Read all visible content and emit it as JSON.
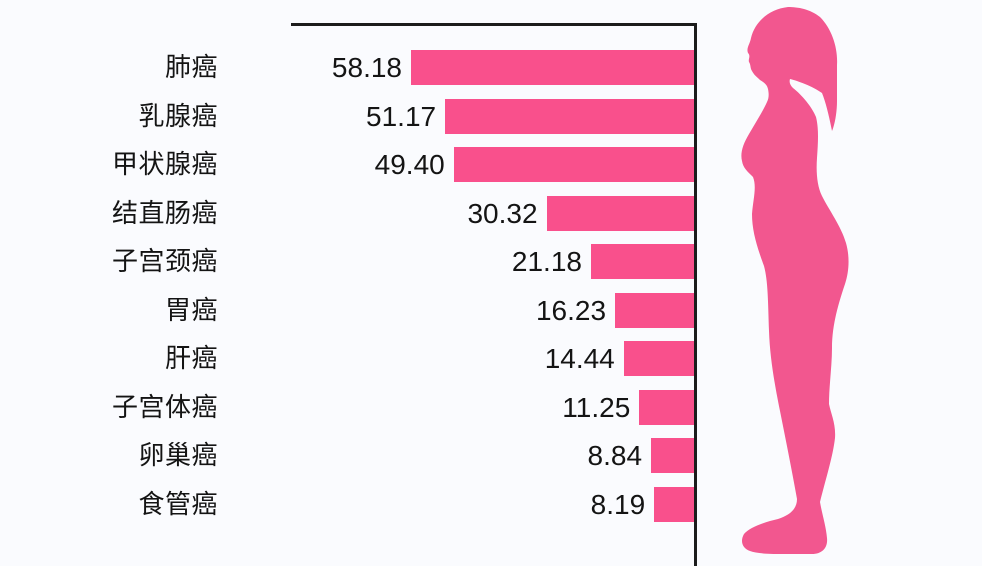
{
  "background_color": "#fafbfe",
  "axis_color": "#1c1c1c",
  "text_color": "#141414",
  "chart_data": {
    "type": "bar",
    "orientation": "horizontal",
    "bars_anchored": "right",
    "title": "",
    "xlabel": "",
    "ylabel": "",
    "grid": false,
    "legend": null,
    "xlim": [
      0,
      58.18
    ],
    "bar_color": "#f9508c",
    "categories": [
      "肺癌",
      "乳腺癌",
      "甲状腺癌",
      "结直肠癌",
      "子宫颈癌",
      "胃癌",
      "肝癌",
      "子宫体癌",
      "卵巢癌",
      "食管癌"
    ],
    "values": [
      58.18,
      51.17,
      49.4,
      30.32,
      21.18,
      16.23,
      14.44,
      11.25,
      8.84,
      8.19
    ],
    "value_labels": [
      "58.18",
      "51.17",
      "49.40",
      "30.32",
      "21.18",
      "16.23",
      "14.44",
      "11.25",
      "8.84",
      "8.19"
    ]
  },
  "illustration": {
    "name": "standing-woman-profile-silhouette",
    "color": "#f2578f"
  }
}
